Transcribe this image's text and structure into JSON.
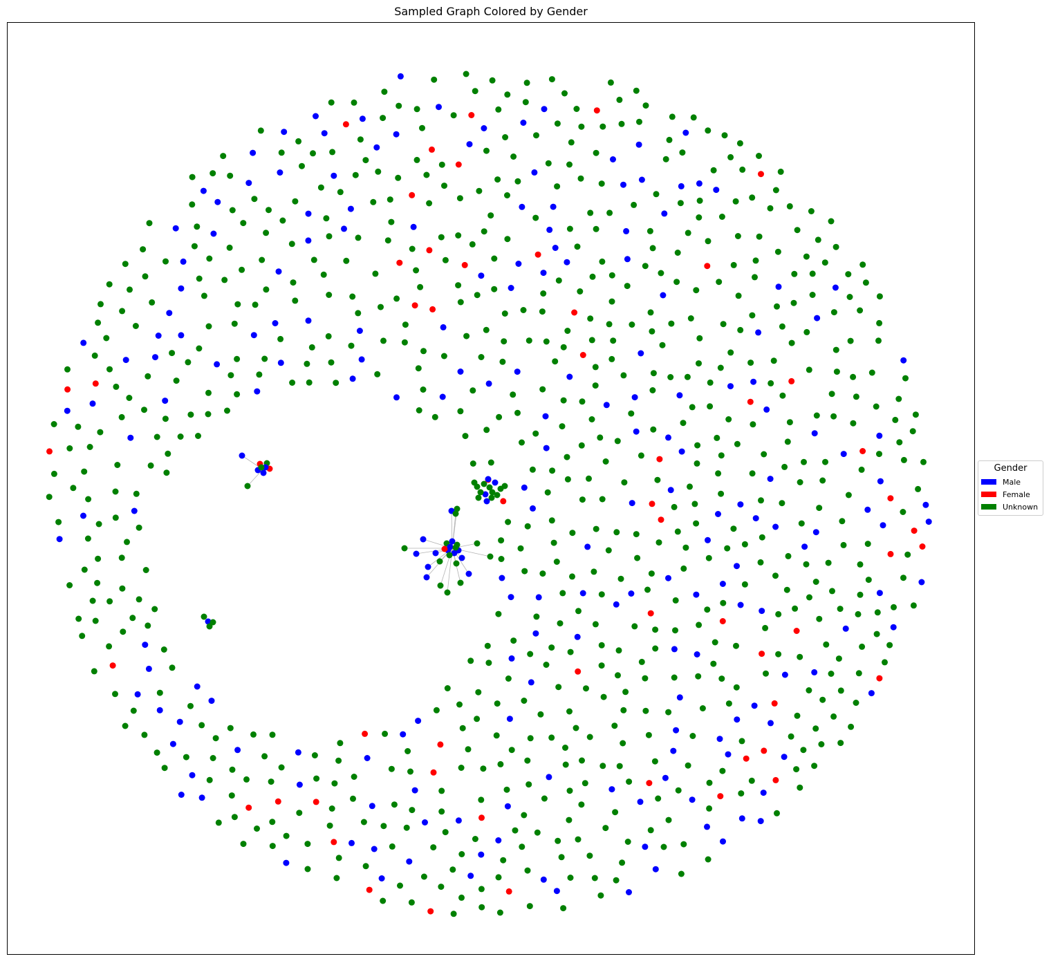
{
  "chart_data": {
    "type": "network",
    "title": "Sampled Graph Colored by Gender",
    "legend": {
      "title": "Gender",
      "placement": "center-right outside",
      "entries": [
        {
          "label": "Male",
          "color": "#0000ff"
        },
        {
          "label": "Female",
          "color": "#ff0000"
        },
        {
          "label": "Unknown",
          "color": "#008000"
        }
      ]
    },
    "edge_color": "#b3b3b3",
    "layout": "spring (force-directed); mostly isolated nodes on a ring",
    "clusters": [
      {
        "name": "central-star",
        "hub_gender": "Male",
        "leaf_count": 18
      },
      {
        "name": "upper-center-cluster",
        "gender_mix": [
          "Unknown",
          "Male",
          "Female"
        ]
      },
      {
        "name": "left-cluster",
        "gender_mix": [
          "Male",
          "Female",
          "Unknown"
        ]
      },
      {
        "name": "lower-left-cluster",
        "gender_mix": [
          "Unknown",
          "Male"
        ]
      }
    ],
    "approx_node_share": {
      "Male": 0.2,
      "Female": 0.06,
      "Unknown": 0.74
    },
    "grid": false,
    "axes": false
  }
}
